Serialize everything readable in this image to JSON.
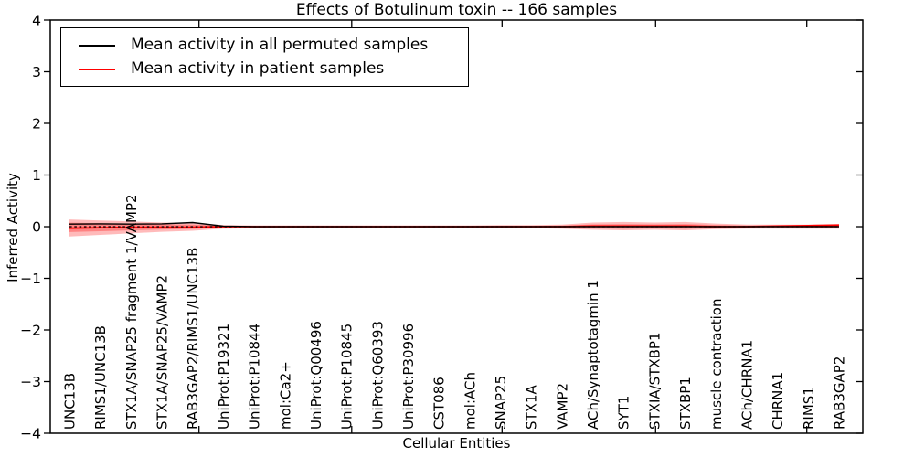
{
  "chart_data": {
    "type": "line",
    "title": "Effects of Botulinum toxin -- 166 samples",
    "xlabel": "Cellular Entities",
    "ylabel": "Inferred Activity",
    "ylim": [
      -4,
      4
    ],
    "yticks": [
      4,
      3,
      2,
      1,
      0,
      -1,
      -2,
      -3,
      -4
    ],
    "grid": false,
    "legend_position": "upper left",
    "categories": [
      "UNC13B",
      "RIMS1/UNC13B",
      "STX1A/SNAP25 fragment 1/VAMP2",
      "STX1A/SNAP25/VAMP2",
      "RAB3GAP2/RIMS1/UNC13B",
      "UniProt:P19321",
      "UniProt:P10844",
      "mol:Ca2+",
      "UniProt:Q00496",
      "UniProt:P10845",
      "UniProt:Q60393",
      "UniProt:P30996",
      "CST086",
      "mol:ACh",
      "SNAP25",
      "STX1A",
      "VAMP2",
      "ACh/Synaptotagmin 1",
      "SYT1",
      "STXIA/STXBP1",
      "STXBP1",
      "muscle contraction",
      "ACh/CHRNA1",
      "CHRNA1",
      "RIMS1",
      "RAB3GAP2"
    ],
    "series": [
      {
        "name": "Mean activity in all permuted samples",
        "color": "#000000",
        "line_style": "solid",
        "values": [
          0.05,
          0.055,
          0.05,
          0.055,
          0.08,
          0.01,
          0,
          0,
          0,
          0,
          0,
          0,
          0,
          0,
          0,
          0,
          0,
          0,
          0,
          0,
          0,
          0,
          0,
          0,
          0,
          0
        ]
      },
      {
        "name": "Mean activity in patient samples",
        "color": "#ff0000",
        "line_style": "solid",
        "values": [
          -0.03,
          -0.02,
          -0.015,
          -0.01,
          -0.01,
          0,
          0,
          0,
          0,
          0,
          0,
          0,
          0,
          0,
          0,
          0,
          0,
          0.01,
          0.01,
          0.01,
          0.01,
          0,
          0,
          0.01,
          0.02,
          0.03
        ]
      },
      {
        "name": "zero-baseline",
        "color": "#000000",
        "line_style": "dashed",
        "in_legend": false,
        "values": [
          0,
          0,
          0,
          0,
          0,
          0,
          0,
          0,
          0,
          0,
          0,
          0,
          0,
          0,
          0,
          0,
          0,
          0,
          0,
          0,
          0,
          0,
          0,
          0,
          0,
          0
        ]
      }
    ],
    "band": {
      "name": "patient samples spread",
      "color": "#ff0000",
      "opacity": 0.27,
      "upper": [
        0.14,
        0.12,
        0.1,
        0.08,
        0.07,
        0.03,
        0.025,
        0.025,
        0.025,
        0.025,
        0.025,
        0.025,
        0.025,
        0.025,
        0.03,
        0.03,
        0.04,
        0.08,
        0.09,
        0.08,
        0.09,
        0.06,
        0.04,
        0.04,
        0.04,
        0.05
      ],
      "lower": [
        -0.19,
        -0.16,
        -0.13,
        -0.1,
        -0.08,
        -0.04,
        -0.03,
        -0.03,
        -0.03,
        -0.03,
        -0.03,
        -0.03,
        -0.03,
        -0.03,
        -0.03,
        -0.03,
        -0.04,
        -0.06,
        -0.07,
        -0.06,
        -0.07,
        -0.05,
        -0.04,
        -0.04,
        -0.04,
        -0.04
      ]
    }
  }
}
